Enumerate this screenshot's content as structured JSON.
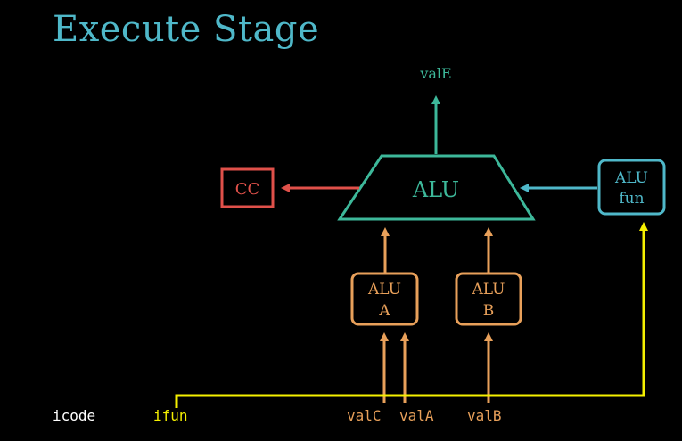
{
  "title": "Execute Stage",
  "nodes": {
    "alu": "ALU",
    "cc": "CC",
    "alu_fun": [
      "ALU",
      "fun"
    ],
    "alu_a": [
      "ALU",
      "A"
    ],
    "alu_b": [
      "ALU",
      "B"
    ]
  },
  "signals": {
    "valE": "valE",
    "icode": "icode",
    "ifun": "ifun",
    "valC": "valC",
    "valA": "valA",
    "valB": "valB"
  },
  "colors": {
    "background": "#000000",
    "title": "#4fb8c9",
    "alu": "#3db89a",
    "cc": "#e0514a",
    "alu_fun": "#4fb8c9",
    "operand": "#e8a05a",
    "control": "#f5f000",
    "neutral": "#ffffff"
  }
}
